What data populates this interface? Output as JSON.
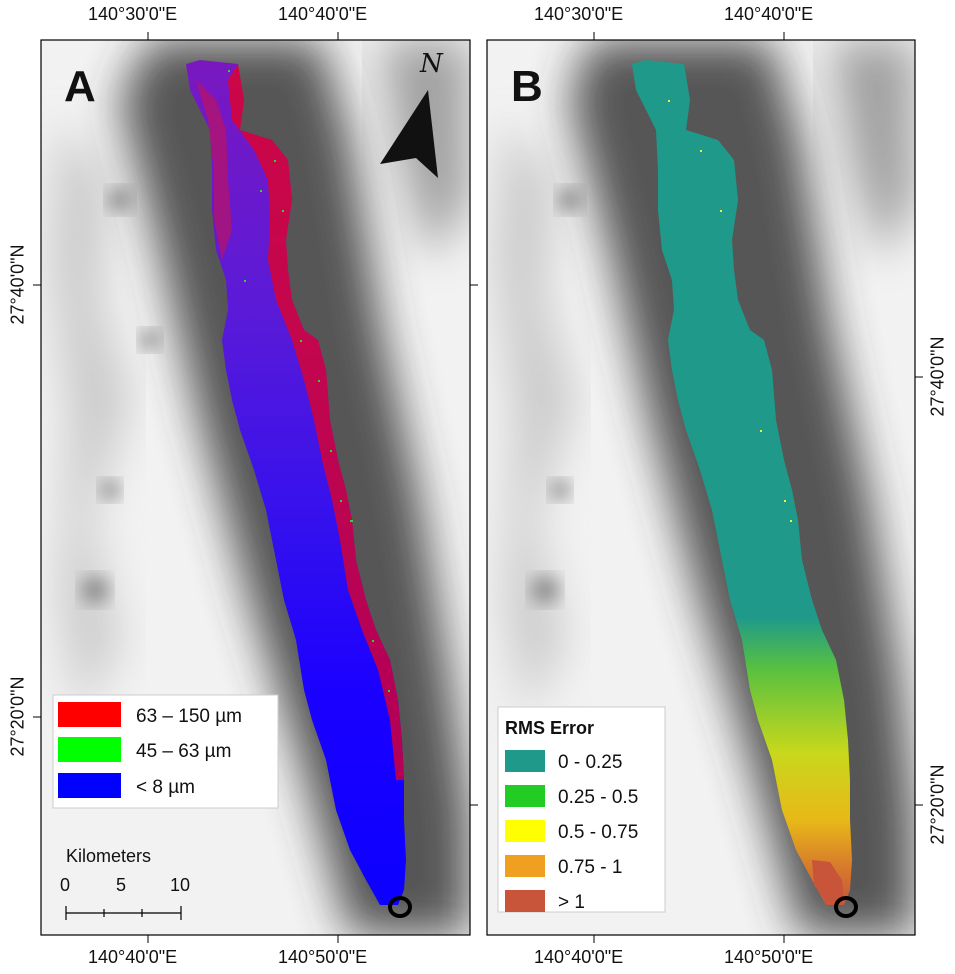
{
  "panels": {
    "a": {
      "letter": "A",
      "north": "N",
      "legend": [
        {
          "label": "63 – 150 µm",
          "color": "#ff0000"
        },
        {
          "label": "45 – 63 µm",
          "color": "#00ff00"
        },
        {
          "label": "< 8 µm",
          "color": "#0000ff"
        }
      ],
      "scale": {
        "title": "Kilometers",
        "labels": [
          "0",
          "5",
          "10"
        ]
      }
    },
    "b": {
      "letter": "B",
      "legend_title": "RMS Error",
      "legend": [
        {
          "label": "0 - 0.25",
          "color": "#1f9a8a"
        },
        {
          "label": "0.25 - 0.5",
          "color": "#22cc22"
        },
        {
          "label": "0.5 - 0.75",
          "color": "#ffff00"
        },
        {
          "label": "0.75 - 1",
          "color": "#f0a020"
        },
        {
          "label": "> 1",
          "color": "#c8553a"
        }
      ]
    }
  },
  "axes": {
    "top_a": [
      "140°30'0\"E",
      "140°40'0\"E"
    ],
    "top_b": [
      "140°30'0\"E",
      "140°40'0\"E"
    ],
    "bottom_a": [
      "140°40'0\"E",
      "140°50'0\"E"
    ],
    "bottom_b": [
      "140°40'0\"E",
      "140°50'0\"E"
    ],
    "left_a": [
      "27°40'0\"N",
      "27°20'0\"N"
    ],
    "right_b": [
      "27°40'0\"N",
      "27°20'0\"N"
    ]
  },
  "colors": {
    "plume_red": "#e5001a",
    "plume_purple": "#6a18c8",
    "plume_blue": "#1600ff",
    "rms_teal": "#1f9a8a",
    "rms_green": "#22cc22",
    "rms_yellow": "#ffff00",
    "rms_orange": "#f0a020",
    "rms_red": "#c8553a"
  }
}
